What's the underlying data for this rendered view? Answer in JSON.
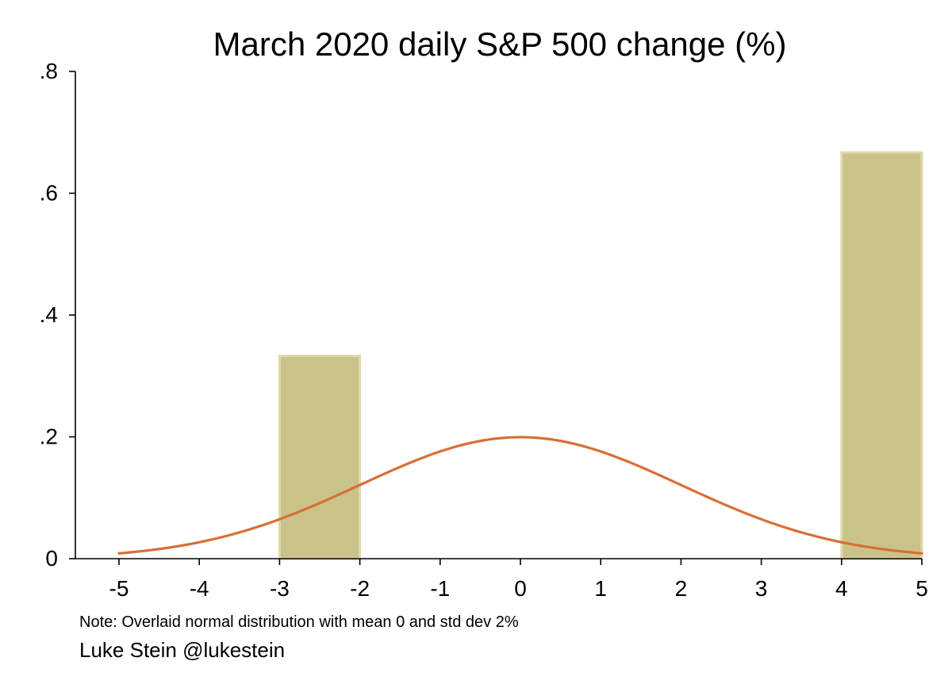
{
  "chart_data": {
    "type": "bar",
    "title": "March 2020 daily S&P 500 change (%)",
    "xlabel": "",
    "ylabel": "",
    "xlim": [
      -5,
      5
    ],
    "ylim": [
      0,
      0.8
    ],
    "xticks": [
      -5,
      -4,
      -3,
      -2,
      -1,
      0,
      1,
      2,
      3,
      4,
      5
    ],
    "xtick_labels": [
      "-5",
      "-4",
      "-3",
      "-2",
      "-1",
      "0",
      "1",
      "2",
      "3",
      "4",
      "5"
    ],
    "yticks": [
      0,
      0.2,
      0.4,
      0.6,
      0.8
    ],
    "ytick_labels": [
      "0",
      ".2",
      ".4",
      ".6",
      ".8"
    ],
    "grid": false,
    "bins": [
      {
        "x_start": -3,
        "x_end": -2,
        "value": 0.333
      },
      {
        "x_start": 4,
        "x_end": 5,
        "value": 0.667
      }
    ],
    "overlay": {
      "type": "line",
      "distribution": "normal",
      "mean": 0,
      "std_dev": 2,
      "x_range": [
        -5,
        5
      ]
    },
    "note": "Note: Overlaid normal distribution with mean 0 and std dev 2%",
    "credit": "Luke Stein @lukestein",
    "colors": {
      "bar_fill": "#c9c38a",
      "bar_stroke": "#dedaa9",
      "curve": "#d86f35",
      "axis": "#000000"
    }
  }
}
